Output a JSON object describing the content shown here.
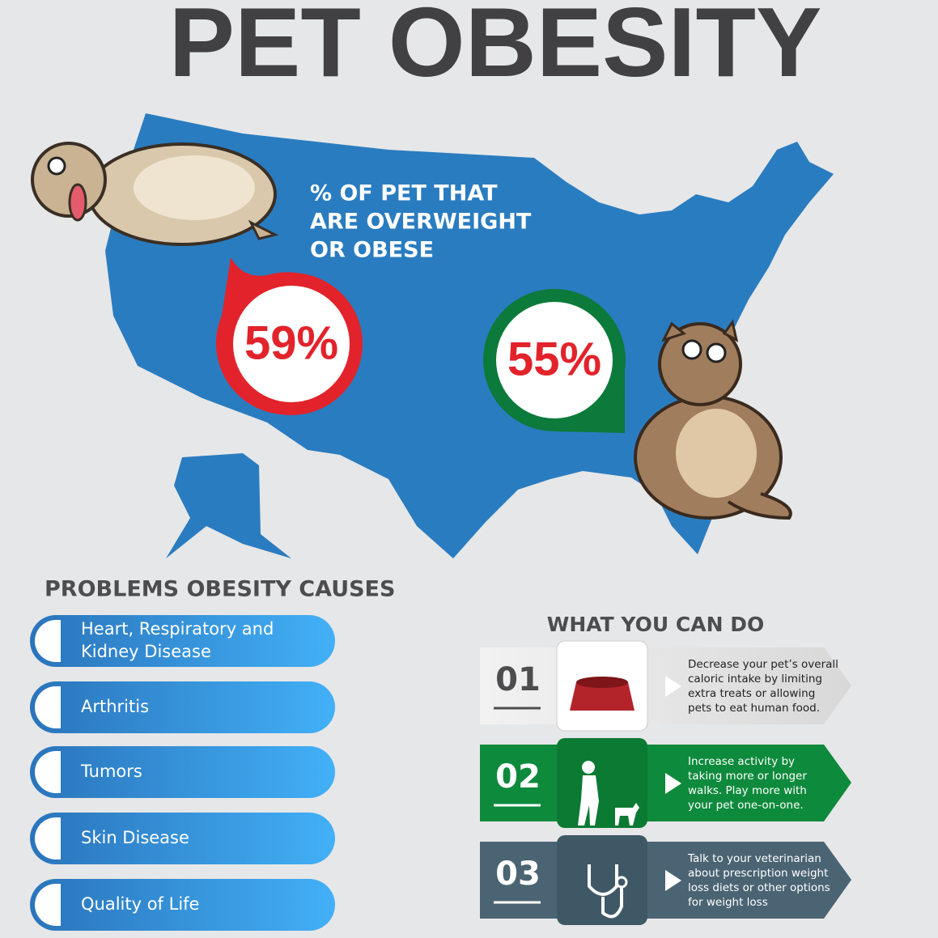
{
  "header": {
    "title": "PET OBESITY"
  },
  "map": {
    "caption": [
      "% OF PET THAT",
      "ARE OVERWEIGHT",
      "OR OBESE"
    ],
    "dog_percent": "59%",
    "cat_percent": "55%"
  },
  "problems": {
    "title": "PROBLEMS OBESITY CAUSES",
    "items": [
      [
        "Heart, Respiratory and",
        "Kidney Disease"
      ],
      [
        "Arthritis"
      ],
      [
        "Tumors"
      ],
      [
        "Skin Disease"
      ],
      [
        "Quality of Life"
      ]
    ]
  },
  "actions": {
    "title": "WHAT YOU CAN DO",
    "steps": [
      {
        "number": "01",
        "text": [
          "Decrease your pet’s overall",
          "caloric intake by limiting",
          "extra treats or allowing",
          "pets to eat human food."
        ]
      },
      {
        "number": "02",
        "text": [
          "Increase activity by",
          "taking more or longer",
          "walks. Play more with",
          "your pet one-on-one."
        ]
      },
      {
        "number": "03",
        "text": [
          "Talk to your veterinarian",
          "about prescription weight",
          "loss diets or other options",
          "for weight loss"
        ]
      }
    ]
  }
}
